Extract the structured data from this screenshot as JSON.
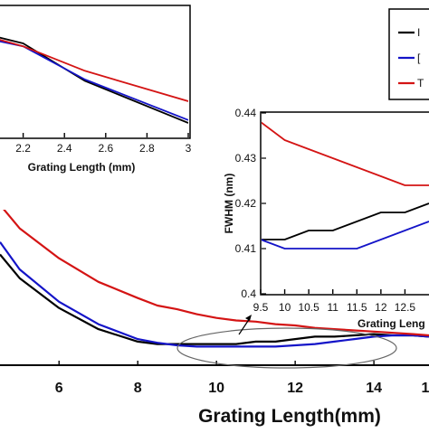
{
  "chart_data": [
    {
      "type": "line",
      "title": "",
      "xlabel": "Grating Length(mm)",
      "ylabel": "",
      "xlim": [
        4.5,
        15.4
      ],
      "ylim": [
        0.395,
        0.52
      ],
      "xticks": [
        6,
        8,
        10,
        12,
        14
      ],
      "xtick_labels": [
        "6",
        "8",
        "10",
        "12",
        "14"
      ],
      "edge_tick_label": "1",
      "grid": false,
      "legend": {
        "placement": "top-right",
        "entries": [
          {
            "label": "I",
            "color": "#000000"
          },
          {
            "label": "[",
            "color": "#1414c8"
          },
          {
            "label": "T",
            "color": "#d41414"
          }
        ]
      },
      "annotation": "ellipse highlighting 9.5–15 mm with arrow to inset",
      "series": [
        {
          "color": "#000000",
          "x": [
            4.5,
            5,
            6,
            7,
            8,
            8.5,
            9,
            9.5,
            10,
            10.5,
            11,
            11.5,
            12,
            12.5,
            13,
            13.5,
            14,
            14.5,
            15,
            15.4
          ],
          "y": [
            0.484,
            0.465,
            0.441,
            0.424,
            0.414,
            0.412,
            0.412,
            0.412,
            0.412,
            0.412,
            0.414,
            0.414,
            0.416,
            0.418,
            0.418,
            0.419,
            0.42,
            0.419,
            0.419,
            0.418
          ]
        },
        {
          "color": "#1414c8",
          "x": [
            4.5,
            5,
            6,
            7,
            8,
            8.5,
            9,
            9.5,
            10,
            10.5,
            11,
            11.5,
            12,
            12.5,
            13,
            13.5,
            14,
            14.5,
            15,
            15.4
          ],
          "y": [
            0.494,
            0.472,
            0.446,
            0.428,
            0.416,
            0.413,
            0.411,
            0.41,
            0.41,
            0.41,
            0.41,
            0.41,
            0.411,
            0.412,
            0.414,
            0.416,
            0.418,
            0.419,
            0.419,
            0.418
          ]
        },
        {
          "color": "#d41414",
          "x": [
            4.5,
            5,
            6,
            7,
            8,
            8.5,
            9,
            9.5,
            10,
            10.5,
            11,
            11.5,
            12,
            12.5,
            13,
            13.5,
            14,
            14.5,
            15,
            15.4
          ],
          "y": [
            0.524,
            0.505,
            0.481,
            0.462,
            0.449,
            0.443,
            0.44,
            0.436,
            0.433,
            0.431,
            0.43,
            0.428,
            0.427,
            0.425,
            0.424,
            0.423,
            0.422,
            0.421,
            0.42,
            0.419
          ]
        }
      ]
    },
    {
      "type": "line",
      "title": "",
      "xlabel": "Grating Length (mm)",
      "ylabel": "",
      "xlim": [
        2.0,
        3.0
      ],
      "ylim": [
        0.48,
        0.57
      ],
      "xticks": [
        2.2,
        2.4,
        2.6,
        2.8,
        3
      ],
      "xtick_labels": [
        "2.2",
        "2.4",
        "2.6",
        "2.8",
        "3"
      ],
      "grid": false,
      "series": [
        {
          "color": "#000000",
          "x": [
            2.0,
            2.2,
            2.5,
            3.0
          ],
          "y": [
            0.552,
            0.545,
            0.519,
            0.49
          ]
        },
        {
          "color": "#1414c8",
          "x": [
            2.0,
            2.2,
            2.5,
            3.0
          ],
          "y": [
            0.549,
            0.543,
            0.52,
            0.492
          ]
        },
        {
          "color": "#d41414",
          "x": [
            2.0,
            2.2,
            2.5,
            3.0
          ],
          "y": [
            0.551,
            0.543,
            0.526,
            0.505
          ]
        }
      ]
    },
    {
      "type": "line",
      "title": "",
      "xlabel": "Grating Leng",
      "ylabel": "FWHM (nm)",
      "xlim": [
        9.5,
        13.0
      ],
      "ylim": [
        0.4,
        0.44
      ],
      "xticks": [
        9.5,
        10,
        10.5,
        11,
        11.5,
        12,
        12.5
      ],
      "xtick_labels": [
        "9.5",
        "10",
        "10.5",
        "11",
        "11.5",
        "12",
        "12.5"
      ],
      "yticks": [
        0.4,
        0.41,
        0.42,
        0.43,
        0.44
      ],
      "ytick_labels": [
        "0.4",
        "0.41",
        "0.42",
        "0.43",
        "0.44"
      ],
      "grid": false,
      "series": [
        {
          "color": "#000000",
          "x": [
            9.5,
            10,
            10.5,
            11,
            11.5,
            12,
            12.5,
            13
          ],
          "y": [
            0.412,
            0.412,
            0.414,
            0.414,
            0.416,
            0.418,
            0.418,
            0.42
          ]
        },
        {
          "color": "#1414c8",
          "x": [
            9.5,
            10,
            10.5,
            11,
            11.5,
            12,
            12.5,
            13
          ],
          "y": [
            0.412,
            0.41,
            0.41,
            0.41,
            0.41,
            0.412,
            0.414,
            0.416
          ]
        },
        {
          "color": "#d41414",
          "x": [
            9.5,
            10,
            10.5,
            11,
            11.5,
            12,
            12.5,
            13
          ],
          "y": [
            0.438,
            0.434,
            0.432,
            0.43,
            0.428,
            0.426,
            0.424,
            0.424
          ]
        }
      ]
    }
  ]
}
